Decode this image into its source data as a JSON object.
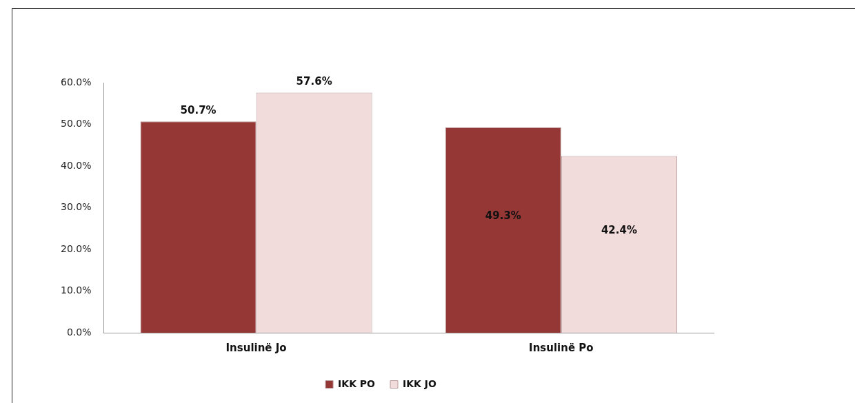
{
  "chart_data": {
    "type": "bar",
    "categories": [
      "Insulinë Jo",
      "Insulinë Po"
    ],
    "series": [
      {
        "name": "IKK PO",
        "color": "#953735",
        "values": [
          50.7,
          49.3
        ],
        "value_labels": [
          "50.7%",
          "49.3%"
        ]
      },
      {
        "name": "IKK JO",
        "color": "#f2dcdb",
        "values": [
          57.6,
          42.4
        ],
        "value_labels": [
          "57.6%",
          "42.4%"
        ]
      }
    ],
    "ylim": [
      0,
      60
    ],
    "yticks": [
      {
        "value": 0,
        "label": "0.0%"
      },
      {
        "value": 10,
        "label": "10.0%"
      },
      {
        "value": 20,
        "label": "20.0%"
      },
      {
        "value": 30,
        "label": "30.0%"
      },
      {
        "value": 40,
        "label": "40.0%"
      },
      {
        "value": 50,
        "label": "50.0%"
      },
      {
        "value": 60,
        "label": "60.0%"
      }
    ],
    "grid": false,
    "legend": "bottom"
  }
}
